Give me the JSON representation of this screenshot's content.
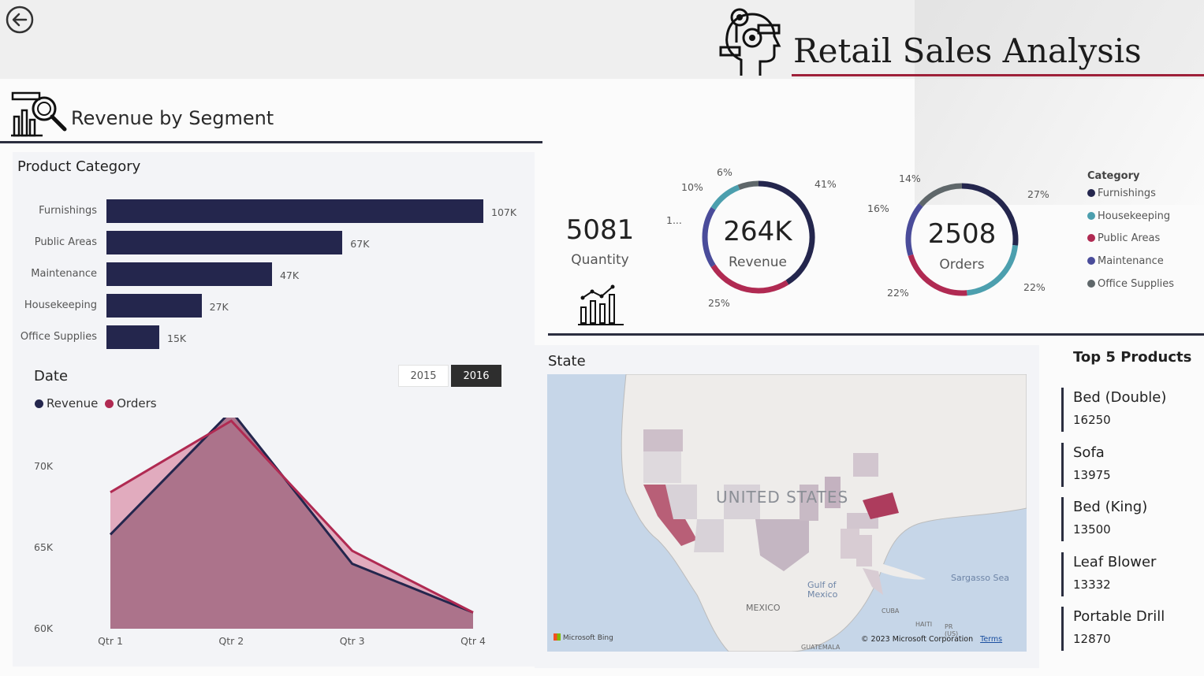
{
  "header": {
    "title": "Retail Sales Analysis",
    "back_icon": "back-arrow-icon",
    "brand_icon": "brain-gears-icon",
    "accent_color": "#9e2039"
  },
  "segment": {
    "title": "Revenue by Segment",
    "icon": "chart-magnifier-icon"
  },
  "product_category": {
    "label": "Product Category",
    "bar_color": "#24264d"
  },
  "date_section": {
    "label": "Date",
    "years": [
      "2015",
      "2016"
    ],
    "selected_year": "2016",
    "legend": [
      {
        "label": "Revenue",
        "color": "#24264d"
      },
      {
        "label": "Orders",
        "color": "#b02a52"
      }
    ]
  },
  "kpi": {
    "quantity_value": "5081",
    "quantity_label": "Quantity",
    "icon": "bar-chart-growth-icon"
  },
  "revenue_donut": {
    "center_value": "264K",
    "center_label": "Revenue",
    "labels": {
      "a": "41%",
      "b": "25%",
      "c": "1...",
      "d": "10%",
      "e": "6%"
    }
  },
  "orders_donut": {
    "center_value": "2508",
    "center_label": "Orders",
    "labels": {
      "a": "27%",
      "b": "22%",
      "c": "22%",
      "d": "16%",
      "e": "14%"
    }
  },
  "category_legend": {
    "title": "Category",
    "items": [
      {
        "label": "Furnishings",
        "color": "#24264d"
      },
      {
        "label": "Housekeeping",
        "color": "#4c9fae"
      },
      {
        "label": "Public Areas",
        "color": "#b02a52"
      },
      {
        "label": "Maintenance",
        "color": "#4a4c9a"
      },
      {
        "label": "Office Supplies",
        "color": "#5f676a"
      }
    ]
  },
  "map": {
    "label": "State",
    "country_label": "UNITED STATES",
    "labels": {
      "gulf": "Gulf of Mexico",
      "mexico": "MEXICO",
      "sargasso": "Sargasso Sea",
      "cuba": "CUBA",
      "haiti": "HAITI",
      "pr": "PR (US)",
      "guatemala": "GUATEMALA"
    },
    "attribution": "Microsoft Bing",
    "copyright": "© 2023 Microsoft Corporation",
    "terms": "Terms"
  },
  "top_products": {
    "title": "Top 5 Products",
    "items": [
      {
        "name": "Bed (Double)",
        "value": "16250"
      },
      {
        "name": "Sofa",
        "value": "13975"
      },
      {
        "name": "Bed (King)",
        "value": "13500"
      },
      {
        "name": "Leaf Blower",
        "value": "13332"
      },
      {
        "name": "Portable Drill",
        "value": "12870"
      }
    ]
  },
  "chart_data": [
    {
      "type": "bar",
      "orientation": "horizontal",
      "title": "Product Category",
      "categories": [
        "Furnishings",
        "Public Areas",
        "Maintenance",
        "Housekeeping",
        "Office Supplies"
      ],
      "values": [
        107000,
        67000,
        47000,
        27000,
        15000
      ],
      "value_labels": [
        "107K",
        "67K",
        "47K",
        "27K",
        "15K"
      ],
      "xlim": [
        0,
        115000
      ]
    },
    {
      "type": "area",
      "title": "Date",
      "x": [
        "Qtr 1",
        "Qtr 2",
        "Qtr 3",
        "Qtr 4"
      ],
      "y_tick_labels": [
        "70K",
        "65K",
        "60K"
      ],
      "y_ticks": [
        70000,
        65000,
        60000
      ],
      "ylim": [
        60000,
        73000
      ],
      "series": [
        {
          "name": "Revenue",
          "values": [
            65800,
            73400,
            64000,
            61000
          ],
          "color": "#24264d"
        },
        {
          "name": "Orders",
          "values": [
            68400,
            72800,
            64800,
            61000
          ],
          "color": "#b02a52"
        }
      ],
      "fill_color": "#a97088",
      "legend": "top-left"
    },
    {
      "type": "pie",
      "title": "Revenue",
      "categories": [
        "Furnishings",
        "Public Areas",
        "Maintenance",
        "Housekeeping",
        "Office Supplies"
      ],
      "values": [
        41,
        25,
        18,
        10,
        6
      ],
      "labels": [
        "41%",
        "25%",
        "1...",
        "10%",
        "6%"
      ],
      "donut": true
    },
    {
      "type": "pie",
      "title": "Orders",
      "categories": [
        "Furnishings",
        "Housekeeping",
        "Public Areas",
        "Maintenance",
        "Office Supplies"
      ],
      "values": [
        27,
        22,
        22,
        16,
        14
      ],
      "labels": [
        "27%",
        "22%",
        "22%",
        "16%",
        "14%"
      ],
      "donut": true
    }
  ]
}
